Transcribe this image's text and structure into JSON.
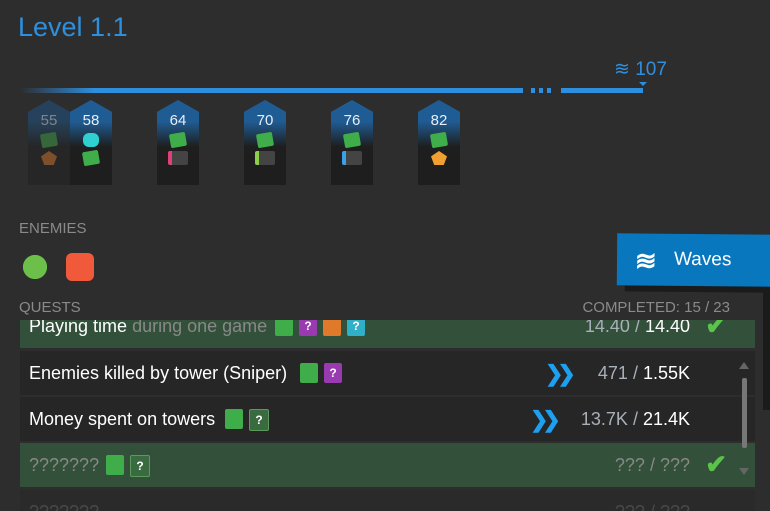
{
  "title": "Level 1.1",
  "wave_total": "107",
  "wave_markers": [
    {
      "wave": "55",
      "rewards": [
        "cash",
        "badge"
      ],
      "faded": true
    },
    {
      "wave": "58",
      "rewards": [
        "gems",
        "cash"
      ]
    },
    {
      "wave": "64",
      "rewards": [
        "cash",
        "pink-card"
      ]
    },
    {
      "wave": "70",
      "rewards": [
        "cash",
        "green-card"
      ]
    },
    {
      "wave": "76",
      "rewards": [
        "cash",
        "xp-card"
      ]
    },
    {
      "wave": "82",
      "rewards": [
        "cash",
        "badge"
      ]
    }
  ],
  "enemies_label": "ENEMIES",
  "quests_label": "QUESTS",
  "completed": "COMPLETED: 15 / 23",
  "waves_button": "Waves",
  "quests": [
    {
      "name": "Playing time",
      "name_dim": "during one game",
      "current": "14.40",
      "target": "14.40",
      "done": true
    },
    {
      "name": "Enemies killed by tower (Sniper)",
      "current": "471",
      "target": "1.55K",
      "done": false
    },
    {
      "name": "Money spent on towers",
      "current": "13.7K",
      "target": "21.4K",
      "done": false
    },
    {
      "name": "???????",
      "current": "???",
      "target": "???",
      "done": true
    },
    {
      "name": "???????",
      "current": "???",
      "target": "???",
      "done": false
    }
  ],
  "sep": " / ",
  "unknown_icon": "?",
  "colors": {
    "accent": "#2f8fdf",
    "done_row": "#33503a",
    "waves_button": "#0877bd"
  }
}
